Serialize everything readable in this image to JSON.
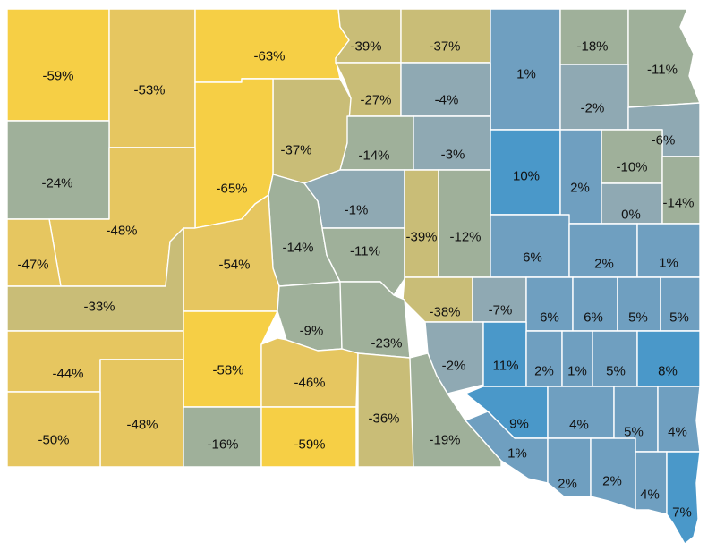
{
  "colors": {
    "strong_decline": "#f6cf45",
    "decline": "#e6c660",
    "mild_decline": "#c9bd77",
    "slight_decline": "#9fb09a",
    "near_zero": "#8fa9b3",
    "growth": "#6f9fc0",
    "strong_growth": "#4a98c9",
    "border": "#ffffff"
  },
  "counties": [
    {
      "id": "c01",
      "label": "-59%",
      "value": -59
    },
    {
      "id": "c02",
      "label": "-53%",
      "value": -53
    },
    {
      "id": "c03",
      "label": "-63%",
      "value": -63
    },
    {
      "id": "c04",
      "label": "-39%",
      "value": -39
    },
    {
      "id": "c05",
      "label": "-37%",
      "value": -37
    },
    {
      "id": "c06",
      "label": "1%",
      "value": 1
    },
    {
      "id": "c07",
      "label": "-18%",
      "value": -18
    },
    {
      "id": "c08",
      "label": "-11%",
      "value": -11
    },
    {
      "id": "c09",
      "label": "-27%",
      "value": -27
    },
    {
      "id": "c10",
      "label": "-4%",
      "value": -4
    },
    {
      "id": "c11",
      "label": "-2%",
      "value": -2
    },
    {
      "id": "c12",
      "label": "-37%",
      "value": -37
    },
    {
      "id": "c13",
      "label": "-24%",
      "value": -24
    },
    {
      "id": "c14",
      "label": "-14%",
      "value": -14
    },
    {
      "id": "c15",
      "label": "-3%",
      "value": -3
    },
    {
      "id": "c16",
      "label": "-6%",
      "value": -6
    },
    {
      "id": "c17",
      "label": "-65%",
      "value": -65
    },
    {
      "id": "c18",
      "label": "10%",
      "value": 10
    },
    {
      "id": "c19",
      "label": "-10%",
      "value": -10
    },
    {
      "id": "c20",
      "label": "2%",
      "value": 2
    },
    {
      "id": "c21",
      "label": "-1%",
      "value": -1
    },
    {
      "id": "c22",
      "label": "0%",
      "value": 0
    },
    {
      "id": "c23",
      "label": "-14%",
      "value": -14
    },
    {
      "id": "c24",
      "label": "-48%",
      "value": -48
    },
    {
      "id": "c25",
      "label": "-47%",
      "value": -47
    },
    {
      "id": "c26",
      "label": "-14%",
      "value": -14
    },
    {
      "id": "c27",
      "label": "-11%",
      "value": -11
    },
    {
      "id": "c28",
      "label": "-39%",
      "value": -39
    },
    {
      "id": "c29",
      "label": "-12%",
      "value": -12
    },
    {
      "id": "c30",
      "label": "-54%",
      "value": -54
    },
    {
      "id": "c31",
      "label": "6%",
      "value": 6
    },
    {
      "id": "c32",
      "label": "2%",
      "value": 2
    },
    {
      "id": "c33",
      "label": "1%",
      "value": 1
    },
    {
      "id": "c34",
      "label": "-33%",
      "value": -33
    },
    {
      "id": "c35",
      "label": "-38%",
      "value": -38
    },
    {
      "id": "c36",
      "label": "-7%",
      "value": -7
    },
    {
      "id": "c37",
      "label": "6%",
      "value": 6
    },
    {
      "id": "c38",
      "label": "6%",
      "value": 6
    },
    {
      "id": "c39",
      "label": "5%",
      "value": 5
    },
    {
      "id": "c40",
      "label": "5%",
      "value": 5
    },
    {
      "id": "c41",
      "label": "-9%",
      "value": -9
    },
    {
      "id": "c42",
      "label": "-23%",
      "value": -23
    },
    {
      "id": "c43",
      "label": "-44%",
      "value": -44
    },
    {
      "id": "c44",
      "label": "-58%",
      "value": -58
    },
    {
      "id": "c45",
      "label": "-46%",
      "value": -46
    },
    {
      "id": "c46",
      "label": "-2%",
      "value": -2
    },
    {
      "id": "c47",
      "label": "11%",
      "value": 11
    },
    {
      "id": "c48",
      "label": "2%",
      "value": 2
    },
    {
      "id": "c49",
      "label": "1%",
      "value": 1
    },
    {
      "id": "c50",
      "label": "5%",
      "value": 5
    },
    {
      "id": "c51",
      "label": "8%",
      "value": 8
    },
    {
      "id": "c52",
      "label": "-36%",
      "value": -36
    },
    {
      "id": "c53",
      "label": "-48%",
      "value": -48
    },
    {
      "id": "c54",
      "label": "-50%",
      "value": -50
    },
    {
      "id": "c55",
      "label": "-16%",
      "value": -16
    },
    {
      "id": "c56",
      "label": "-59%",
      "value": -59
    },
    {
      "id": "c57",
      "label": "-19%",
      "value": -19
    },
    {
      "id": "c58",
      "label": "9%",
      "value": 9
    },
    {
      "id": "c59",
      "label": "4%",
      "value": 4
    },
    {
      "id": "c60",
      "label": "5%",
      "value": 5
    },
    {
      "id": "c61",
      "label": "4%",
      "value": 4
    },
    {
      "id": "c62",
      "label": "1%",
      "value": 1
    },
    {
      "id": "c63",
      "label": "2%",
      "value": 2
    },
    {
      "id": "c64",
      "label": "2%",
      "value": 2
    },
    {
      "id": "c65",
      "label": "4%",
      "value": 4
    },
    {
      "id": "c66",
      "label": "7%",
      "value": 7
    }
  ]
}
